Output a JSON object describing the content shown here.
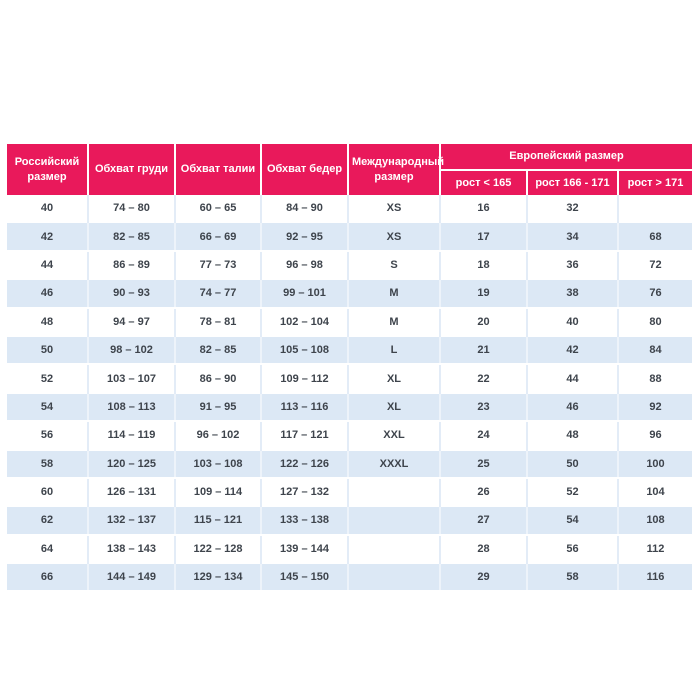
{
  "page": {
    "background": "#FFFFFF"
  },
  "colors": {
    "header_bg": "#E9195B",
    "header_text": "#FFFFFF",
    "row_base_bg": "#FFFFFF",
    "row_alt_bg": "#DCE8F5",
    "body_text": "#3E444C"
  },
  "table": {
    "header": {
      "russian_size": "Российский размер",
      "chest": "Обхват груди",
      "waist": "Обхват талии",
      "hips": "Обхват бедер",
      "international_size": "Международный размер",
      "european_size_group": "Европейский размер",
      "european_sub": [
        "рост < 165",
        "рост 166 - 171",
        "рост > 171"
      ]
    },
    "rows": [
      [
        "40",
        "74 – 80",
        "60 – 65",
        "84 – 90",
        "XS",
        "16",
        "32",
        ""
      ],
      [
        "42",
        "82 – 85",
        "66 – 69",
        "92 – 95",
        "XS",
        "17",
        "34",
        "68"
      ],
      [
        "44",
        "86 – 89",
        "77 – 73",
        "96 – 98",
        "S",
        "18",
        "36",
        "72"
      ],
      [
        "46",
        "90 – 93",
        "74 – 77",
        "99 – 101",
        "M",
        "19",
        "38",
        "76"
      ],
      [
        "48",
        "94 – 97",
        "78 – 81",
        "102 – 104",
        "M",
        "20",
        "40",
        "80"
      ],
      [
        "50",
        "98 – 102",
        "82 – 85",
        "105 – 108",
        "L",
        "21",
        "42",
        "84"
      ],
      [
        "52",
        "103 – 107",
        "86 – 90",
        "109 – 112",
        "XL",
        "22",
        "44",
        "88"
      ],
      [
        "54",
        "108 – 113",
        "91 – 95",
        "113 – 116",
        "XL",
        "23",
        "46",
        "92"
      ],
      [
        "56",
        "114 – 119",
        "96 – 102",
        "117 – 121",
        "XXL",
        "24",
        "48",
        "96"
      ],
      [
        "58",
        "120 – 125",
        "103 – 108",
        "122 – 126",
        "XXXL",
        "25",
        "50",
        "100"
      ],
      [
        "60",
        "126 – 131",
        "109 – 114",
        "127 – 132",
        "",
        "26",
        "52",
        "104"
      ],
      [
        "62",
        "132 – 137",
        "115 – 121",
        "133 – 138",
        "",
        "27",
        "54",
        "108"
      ],
      [
        "64",
        "138 – 143",
        "122 – 128",
        "139 – 144",
        "",
        "28",
        "56",
        "112"
      ],
      [
        "66",
        "144 – 149",
        "129 – 134",
        "145 – 150",
        "",
        "29",
        "58",
        "116"
      ]
    ]
  }
}
